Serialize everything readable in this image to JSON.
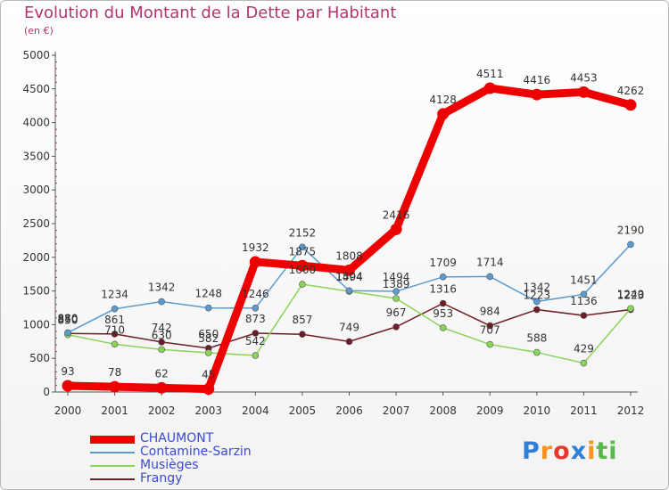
{
  "header": {
    "title": "Evolution du Montant de la Dette par Habitant",
    "unit_note": "(en €)"
  },
  "brand": {
    "letters": [
      {
        "ch": "P",
        "color": "#2f7fd6"
      },
      {
        "ch": "r",
        "color": "#f7941d"
      },
      {
        "ch": "o",
        "color": "#e8372b"
      },
      {
        "ch": "x",
        "color": "#2f7fd6"
      },
      {
        "ch": "i",
        "color": "#f7941d"
      },
      {
        "ch": "t",
        "color": "#56b94a"
      },
      {
        "ch": "i",
        "color": "#56b94a"
      }
    ]
  },
  "chart_data": {
    "type": "line",
    "title": "Evolution du Montant de la Dette par Habitant",
    "subtitle": "(en €)",
    "x": [
      "2000",
      "2001",
      "2002",
      "2003",
      "2004",
      "2005",
      "2006",
      "2007",
      "2008",
      "2009",
      "2010",
      "2011",
      "2012"
    ],
    "ylim": [
      0,
      5000
    ],
    "yticks": [
      0,
      500,
      1000,
      1500,
      2000,
      2500,
      3000,
      3500,
      4000,
      4500,
      5000
    ],
    "grid": false,
    "legend": "bottom-left",
    "series": [
      {
        "name": "CHAUMONT",
        "color": "#ee0000",
        "values": [
          93,
          78,
          62,
          45,
          1932,
          1875,
          1808,
          2416,
          4128,
          4511,
          4416,
          4453,
          4262
        ]
      },
      {
        "name": "Contamine-Sarzin",
        "color": "#5b9bd1",
        "values": [
          880,
          1234,
          1342,
          1248,
          1246,
          2152,
          1504,
          1494,
          1709,
          1714,
          1342,
          1451,
          2190
        ]
      },
      {
        "name": "Musièges",
        "color": "#8bd45a",
        "values": [
          850,
          710,
          630,
          582,
          542,
          1600,
          1494,
          1389,
          953,
          707,
          588,
          429,
          1240
        ]
      },
      {
        "name": "Frangy",
        "color": "#6e1c26",
        "values": [
          870,
          861,
          742,
          650,
          873,
          857,
          749,
          967,
          1316,
          984,
          1223,
          1136,
          1223
        ]
      }
    ]
  }
}
